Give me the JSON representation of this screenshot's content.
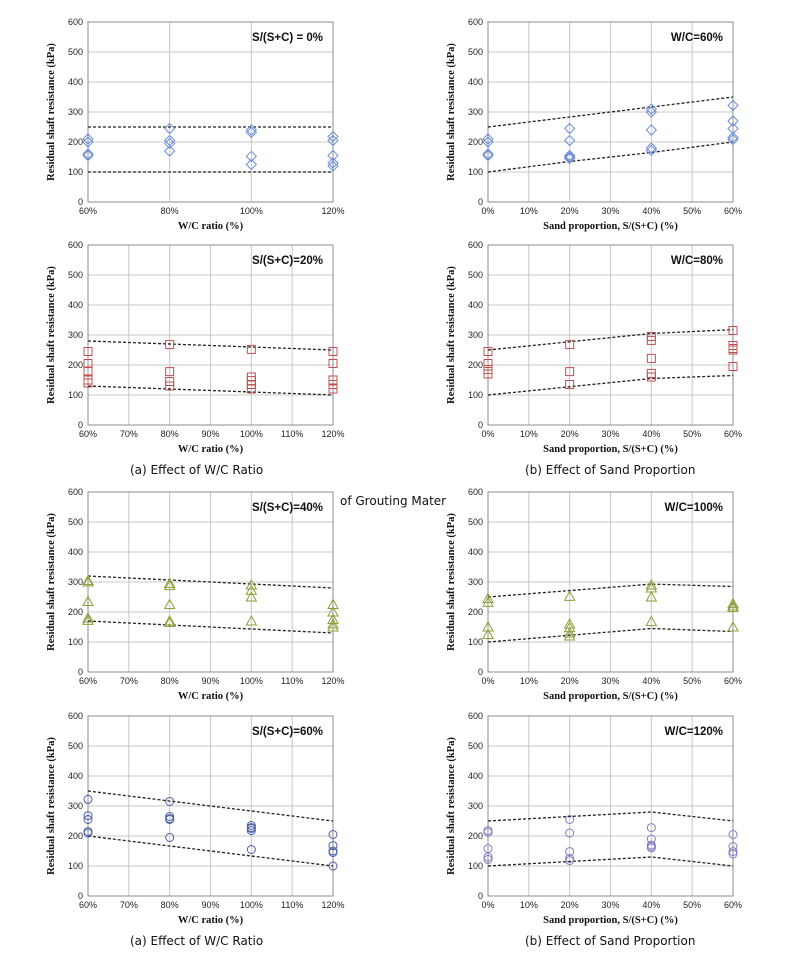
{
  "captions": {
    "a_top": "(a) Effect of W/C Ratio",
    "b_top": "(b) Effect of Sand Proportion",
    "a_bottom": "(a) Effect of W/C Ratio",
    "b_bottom": "(b) Effect of Sand Proportion",
    "overlap_text": "of Grouting Mater"
  },
  "chart_data": [
    {
      "type": "scatter",
      "annotation": "S/(S+C) = 0%",
      "xlabel": "W/C ratio (%)",
      "ylabel": "Residual shaft resistance (kPa)",
      "x_tick_labels": [
        "60%",
        "80%",
        "100%",
        "120%"
      ],
      "x_tick_values": [
        60,
        80,
        100,
        120
      ],
      "xlim": [
        60,
        120
      ],
      "ylim": [
        0,
        600
      ],
      "y_ticks": [
        0,
        100,
        200,
        300,
        400,
        500,
        600
      ],
      "grid": true,
      "marker": "diamond",
      "color": "#6d8fd8",
      "points": [
        [
          60,
          210
        ],
        [
          60,
          200
        ],
        [
          60,
          160
        ],
        [
          60,
          155
        ],
        [
          80,
          245
        ],
        [
          80,
          205
        ],
        [
          80,
          195
        ],
        [
          80,
          170
        ],
        [
          100,
          240
        ],
        [
          100,
          232
        ],
        [
          100,
          152
        ],
        [
          100,
          125
        ],
        [
          120,
          218
        ],
        [
          120,
          205
        ],
        [
          120,
          155
        ],
        [
          120,
          130
        ],
        [
          120,
          120
        ]
      ],
      "bounds": [
        {
          "x": [
            60,
            120
          ],
          "y": [
            250,
            250
          ]
        },
        {
          "x": [
            60,
            120
          ],
          "y": [
            100,
            100
          ]
        }
      ]
    },
    {
      "type": "scatter",
      "annotation": "W/C=60%",
      "xlabel": "Sand proportion, S/(S+C) (%)",
      "ylabel": "Residual shaft resistance (kPa)",
      "x_tick_labels": [
        "0%",
        "10%",
        "20%",
        "30%",
        "40%",
        "50%",
        "60%"
      ],
      "x_tick_values": [
        0,
        10,
        20,
        30,
        40,
        50,
        60
      ],
      "xlim": [
        0,
        60
      ],
      "ylim": [
        0,
        600
      ],
      "y_ticks": [
        0,
        100,
        200,
        300,
        400,
        500,
        600
      ],
      "grid": true,
      "marker": "diamond",
      "color": "#6d8fd8",
      "points": [
        [
          0,
          210
        ],
        [
          0,
          200
        ],
        [
          0,
          160
        ],
        [
          0,
          155
        ],
        [
          20,
          245
        ],
        [
          20,
          205
        ],
        [
          20,
          155
        ],
        [
          20,
          150
        ],
        [
          20,
          145
        ],
        [
          40,
          310
        ],
        [
          40,
          300
        ],
        [
          40,
          240
        ],
        [
          40,
          180
        ],
        [
          40,
          172
        ],
        [
          60,
          322
        ],
        [
          60,
          270
        ],
        [
          60,
          245
        ],
        [
          60,
          215
        ],
        [
          60,
          208
        ]
      ],
      "bounds": [
        {
          "x": [
            0,
            60
          ],
          "y": [
            250,
            350
          ]
        },
        {
          "x": [
            0,
            20,
            40,
            60
          ],
          "y": [
            100,
            135,
            165,
            200
          ]
        }
      ]
    },
    {
      "type": "scatter",
      "annotation": "S/(S+C)=20%",
      "xlabel": "W/C ratio (%)",
      "ylabel": "Residual shaft resistance (kPa)",
      "x_tick_labels": [
        "60%",
        "70%",
        "80%",
        "90%",
        "100%",
        "110%",
        "120%"
      ],
      "x_tick_values": [
        60,
        70,
        80,
        90,
        100,
        110,
        120
      ],
      "xlim": [
        60,
        120
      ],
      "ylim": [
        0,
        600
      ],
      "y_ticks": [
        0,
        100,
        200,
        300,
        400,
        500,
        600
      ],
      "grid": true,
      "marker": "square",
      "color": "#c0504d",
      "points": [
        [
          60,
          245
        ],
        [
          60,
          205
        ],
        [
          60,
          180
        ],
        [
          60,
          150
        ],
        [
          60,
          140
        ],
        [
          80,
          268
        ],
        [
          80,
          178
        ],
        [
          80,
          145
        ],
        [
          80,
          130
        ],
        [
          100,
          252
        ],
        [
          100,
          160
        ],
        [
          100,
          148
        ],
        [
          100,
          135
        ],
        [
          100,
          120
        ],
        [
          120,
          245
        ],
        [
          120,
          205
        ],
        [
          120,
          150
        ],
        [
          120,
          135
        ],
        [
          120,
          120
        ]
      ],
      "bounds": [
        {
          "x": [
            60,
            120
          ],
          "y": [
            280,
            250
          ]
        },
        {
          "x": [
            60,
            120
          ],
          "y": [
            130,
            100
          ]
        }
      ]
    },
    {
      "type": "scatter",
      "annotation": "W/C=80%",
      "xlabel": "Sand proportion, S/(S+C) (%)",
      "ylabel": "Residual shaft resistance (kPa)",
      "x_tick_labels": [
        "0%",
        "10%",
        "20%",
        "30%",
        "40%",
        "50%",
        "60%"
      ],
      "x_tick_values": [
        0,
        10,
        20,
        30,
        40,
        50,
        60
      ],
      "xlim": [
        0,
        60
      ],
      "ylim": [
        0,
        600
      ],
      "y_ticks": [
        0,
        100,
        200,
        300,
        400,
        500,
        600
      ],
      "grid": true,
      "marker": "square",
      "color": "#c0504d",
      "points": [
        [
          0,
          245
        ],
        [
          0,
          205
        ],
        [
          0,
          185
        ],
        [
          0,
          170
        ],
        [
          20,
          268
        ],
        [
          20,
          178
        ],
        [
          20,
          135
        ],
        [
          40,
          295
        ],
        [
          40,
          282
        ],
        [
          40,
          222
        ],
        [
          40,
          172
        ],
        [
          40,
          160
        ],
        [
          60,
          315
        ],
        [
          60,
          265
        ],
        [
          60,
          255
        ],
        [
          60,
          250
        ],
        [
          60,
          195
        ]
      ],
      "bounds": [
        {
          "x": [
            0,
            40,
            60
          ],
          "y": [
            250,
            305,
            318
          ]
        },
        {
          "x": [
            0,
            40,
            60
          ],
          "y": [
            100,
            155,
            165
          ]
        }
      ]
    },
    {
      "type": "scatter",
      "annotation": "S/(S+C)=40%",
      "xlabel": "W/C ratio (%)",
      "ylabel": "Residual shaft resistance (kPa)",
      "x_tick_labels": [
        "60%",
        "70%",
        "80%",
        "90%",
        "100%",
        "110%",
        "120%"
      ],
      "x_tick_values": [
        60,
        70,
        80,
        90,
        100,
        110,
        120
      ],
      "xlim": [
        60,
        120
      ],
      "ylim": [
        0,
        600
      ],
      "y_ticks": [
        0,
        100,
        200,
        300,
        400,
        500,
        600
      ],
      "grid": true,
      "marker": "triangle",
      "color": "#8aa13a",
      "points": [
        [
          60,
          305
        ],
        [
          60,
          300
        ],
        [
          60,
          235
        ],
        [
          60,
          180
        ],
        [
          60,
          172
        ],
        [
          80,
          295
        ],
        [
          80,
          288
        ],
        [
          80,
          225
        ],
        [
          80,
          170
        ],
        [
          80,
          165
        ],
        [
          100,
          290
        ],
        [
          100,
          272
        ],
        [
          100,
          250
        ],
        [
          100,
          170
        ],
        [
          120,
          225
        ],
        [
          120,
          200
        ],
        [
          120,
          175
        ],
        [
          120,
          160
        ],
        [
          120,
          150
        ]
      ],
      "bounds": [
        {
          "x": [
            60,
            120
          ],
          "y": [
            320,
            280
          ]
        },
        {
          "x": [
            60,
            120
          ],
          "y": [
            170,
            130
          ]
        }
      ]
    },
    {
      "type": "scatter",
      "annotation": "W/C=100%",
      "xlabel": "Sand proportion, S/(S+C) (%)",
      "ylabel": "Residual shaft resistance (kPa)",
      "x_tick_labels": [
        "0%",
        "10%",
        "20%",
        "30%",
        "40%",
        "50%",
        "60%"
      ],
      "x_tick_values": [
        0,
        10,
        20,
        30,
        40,
        50,
        60
      ],
      "xlim": [
        0,
        60
      ],
      "ylim": [
        0,
        600
      ],
      "y_ticks": [
        0,
        100,
        200,
        300,
        400,
        500,
        600
      ],
      "grid": true,
      "marker": "triangle",
      "color": "#8aa13a",
      "points": [
        [
          0,
          245
        ],
        [
          0,
          232
        ],
        [
          0,
          150
        ],
        [
          0,
          125
        ],
        [
          20,
          252
        ],
        [
          20,
          160
        ],
        [
          20,
          148
        ],
        [
          20,
          130
        ],
        [
          20,
          120
        ],
        [
          40,
          290
        ],
        [
          40,
          280
        ],
        [
          40,
          250
        ],
        [
          40,
          168
        ],
        [
          60,
          228
        ],
        [
          60,
          220
        ],
        [
          60,
          215
        ],
        [
          60,
          150
        ]
      ],
      "bounds": [
        {
          "x": [
            0,
            40,
            60
          ],
          "y": [
            250,
            293,
            285
          ]
        },
        {
          "x": [
            0,
            40,
            60
          ],
          "y": [
            100,
            145,
            135
          ]
        }
      ]
    },
    {
      "type": "scatter",
      "annotation": "S/(S+C)=60%",
      "xlabel": "W/C ratio (%)",
      "ylabel": "Residual shaft resistance (kPa)",
      "x_tick_labels": [
        "60%",
        "70%",
        "80%",
        "90%",
        "100%",
        "110%",
        "120%"
      ],
      "x_tick_values": [
        60,
        70,
        80,
        90,
        100,
        110,
        120
      ],
      "xlim": [
        60,
        120
      ],
      "ylim": [
        0,
        600
      ],
      "y_ticks": [
        0,
        100,
        200,
        300,
        400,
        500,
        600
      ],
      "grid": true,
      "marker": "circle",
      "color": "#4a5fa8",
      "points": [
        [
          60,
          322
        ],
        [
          60,
          268
        ],
        [
          60,
          255
        ],
        [
          60,
          215
        ],
        [
          60,
          210
        ],
        [
          80,
          315
        ],
        [
          80,
          265
        ],
        [
          80,
          258
        ],
        [
          80,
          255
        ],
        [
          80,
          195
        ],
        [
          100,
          235
        ],
        [
          100,
          228
        ],
        [
          100,
          225
        ],
        [
          100,
          218
        ],
        [
          100,
          155
        ],
        [
          120,
          205
        ],
        [
          120,
          168
        ],
        [
          120,
          150
        ],
        [
          120,
          145
        ],
        [
          120,
          100
        ]
      ],
      "bounds": [
        {
          "x": [
            60,
            120
          ],
          "y": [
            350,
            250
          ]
        },
        {
          "x": [
            60,
            120
          ],
          "y": [
            200,
            100
          ]
        }
      ]
    },
    {
      "type": "scatter",
      "annotation": "W/C=120%",
      "xlabel": "Sand proportion, S/(S+C) (%)",
      "ylabel": "Residual shaft resistance (kPa)",
      "x_tick_labels": [
        "0%",
        "10%",
        "20%",
        "30%",
        "40%",
        "50%",
        "60%"
      ],
      "x_tick_values": [
        0,
        10,
        20,
        30,
        40,
        50,
        60
      ],
      "xlim": [
        0,
        60
      ],
      "ylim": [
        0,
        600
      ],
      "y_ticks": [
        0,
        100,
        200,
        300,
        400,
        500,
        600
      ],
      "grid": true,
      "marker": "circle",
      "color": "#8a79c0",
      "points": [
        [
          0,
          218
        ],
        [
          0,
          212
        ],
        [
          0,
          158
        ],
        [
          0,
          130
        ],
        [
          0,
          122
        ],
        [
          20,
          255
        ],
        [
          20,
          210
        ],
        [
          20,
          148
        ],
        [
          20,
          125
        ],
        [
          20,
          118
        ],
        [
          40,
          228
        ],
        [
          40,
          190
        ],
        [
          40,
          170
        ],
        [
          40,
          165
        ],
        [
          40,
          160
        ],
        [
          60,
          205
        ],
        [
          60,
          165
        ],
        [
          60,
          148
        ],
        [
          60,
          140
        ]
      ],
      "bounds": [
        {
          "x": [
            0,
            40,
            60
          ],
          "y": [
            250,
            280,
            250
          ]
        },
        {
          "x": [
            0,
            40,
            60
          ],
          "y": [
            100,
            130,
            100
          ]
        }
      ]
    }
  ]
}
